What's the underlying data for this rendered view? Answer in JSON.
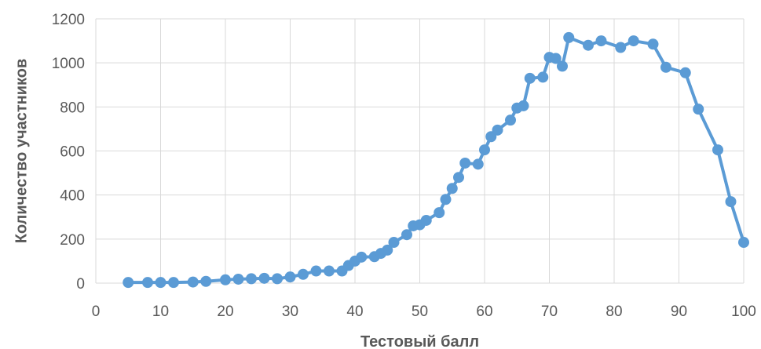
{
  "chart_data": {
    "type": "line",
    "title": "",
    "xlabel": "Тестовый балл",
    "ylabel": "Количество участников",
    "xlim": [
      0,
      100
    ],
    "ylim": [
      0,
      1200
    ],
    "xticks": [
      "0",
      "10",
      "20",
      "30",
      "40",
      "50",
      "60",
      "70",
      "80",
      "90",
      "100"
    ],
    "yticks": [
      "0",
      "200",
      "400",
      "600",
      "800",
      "1000",
      "1200"
    ],
    "grid": true,
    "legend": "none",
    "series_color": "#5b9bd5",
    "series": [
      {
        "x": [
          5,
          8,
          10,
          12,
          15,
          17,
          20,
          22,
          24,
          26,
          28,
          30,
          32,
          34,
          36,
          38,
          39,
          40,
          41,
          43,
          44,
          45,
          46,
          48,
          49,
          50,
          51,
          53,
          54,
          55,
          56,
          57,
          59,
          60,
          61,
          62,
          64,
          65,
          66,
          67,
          69,
          70,
          71,
          72,
          73,
          76,
          78,
          81,
          83,
          86,
          88,
          91,
          93,
          96,
          98,
          100
        ],
        "y": [
          3,
          3,
          3,
          3,
          5,
          8,
          15,
          18,
          20,
          22,
          20,
          28,
          40,
          55,
          55,
          55,
          80,
          100,
          118,
          120,
          135,
          150,
          185,
          220,
          260,
          265,
          285,
          320,
          380,
          430,
          480,
          545,
          540,
          605,
          665,
          695,
          740,
          795,
          805,
          930,
          935,
          1025,
          1020,
          985,
          1115,
          1080,
          1100,
          1070,
          1100,
          1085,
          980,
          955,
          790,
          605,
          370,
          185
        ]
      }
    ]
  }
}
